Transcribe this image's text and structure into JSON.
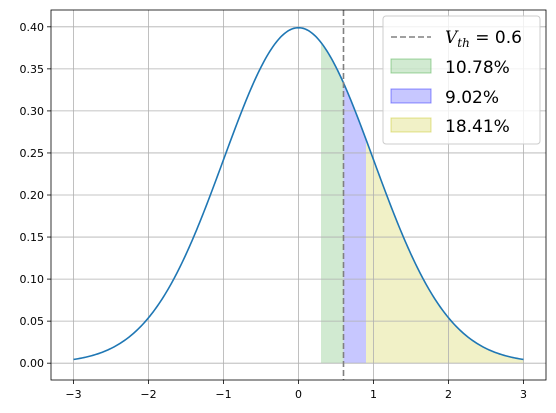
{
  "chart_data": {
    "type": "area",
    "title": "",
    "xlabel": "",
    "ylabel": "",
    "xlim": [
      -3.3,
      3.3
    ],
    "ylim": [
      -0.02,
      0.42
    ],
    "x_ticks": [
      -3,
      -2,
      -1,
      0,
      1,
      2,
      3
    ],
    "x_tick_labels": [
      "−3",
      "−2",
      "−1",
      "0",
      "1",
      "2",
      "3"
    ],
    "y_ticks": [
      0.0,
      0.05,
      0.1,
      0.15,
      0.2,
      0.25,
      0.3,
      0.35,
      0.4
    ],
    "y_tick_labels": [
      "0.00",
      "0.05",
      "0.10",
      "0.15",
      "0.20",
      "0.25",
      "0.30",
      "0.35",
      "0.40"
    ],
    "grid": true,
    "legend_position": "top-right",
    "curve": {
      "description": "standard normal pdf",
      "x_range": [
        -3,
        3
      ],
      "color": "#1f77b4"
    },
    "threshold_line": {
      "x": 0.6,
      "label_main": "V",
      "label_sub": "th",
      "label_value": " = 0.6",
      "color": "#808080",
      "style": "dashed"
    },
    "shaded_regions": [
      {
        "label": "10.78%",
        "x_start": 0.3,
        "x_end": 0.6,
        "color": "#2ca02c",
        "opacity": 0.22
      },
      {
        "label": "9.02%",
        "x_start": 0.6,
        "x_end": 0.9,
        "color": "#0000ff",
        "opacity": 0.22
      },
      {
        "label": "18.41%",
        "x_start": 0.9,
        "x_end": 3.0,
        "color": "#bfbf00",
        "opacity": 0.22
      }
    ]
  }
}
